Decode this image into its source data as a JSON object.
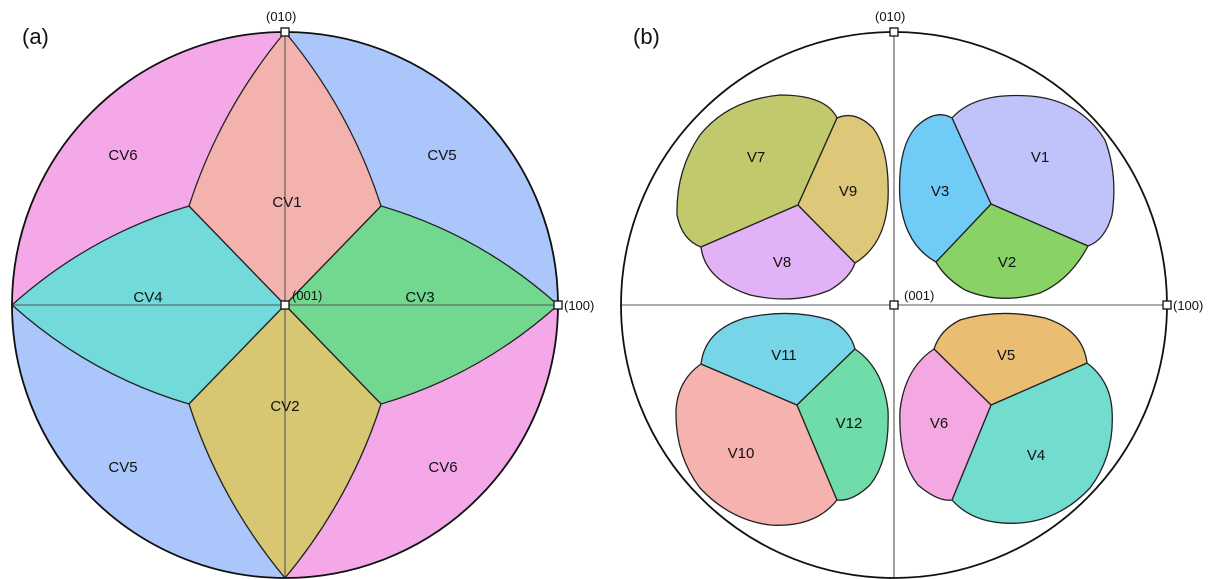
{
  "panels": [
    {
      "id": "a",
      "label": "(a)",
      "poles": {
        "top": "(010)",
        "center": "(001)",
        "right": "(100)"
      },
      "regions": [
        {
          "label": "CV1",
          "color": "#F4B2AE"
        },
        {
          "label": "CV2",
          "color": "#D8C772"
        },
        {
          "label": "CV3",
          "color": "#72D890"
        },
        {
          "label": "CV4",
          "color": "#72DADA"
        },
        {
          "label": "CV5",
          "color": "#AAC6FA"
        },
        {
          "label": "CV6",
          "color": "#F4A8E8"
        },
        {
          "label": "CV5",
          "color": "#AAC6FA"
        },
        {
          "label": "CV6",
          "color": "#F4A8E8"
        }
      ]
    },
    {
      "id": "b",
      "label": "(b)",
      "poles": {
        "top": "(010)",
        "center": "(001)",
        "right": "(100)"
      },
      "regions": [
        {
          "label": "V1",
          "color": "#C0C2FA"
        },
        {
          "label": "V2",
          "color": "#88D266"
        },
        {
          "label": "V3",
          "color": "#70CCF6"
        },
        {
          "label": "V4",
          "color": "#72DCCE"
        },
        {
          "label": "V5",
          "color": "#EABE72"
        },
        {
          "label": "V6",
          "color": "#F4A8E2"
        },
        {
          "label": "V7",
          "color": "#C2C86C"
        },
        {
          "label": "V8",
          "color": "#E2B2F6"
        },
        {
          "label": "V9",
          "color": "#DCC878"
        },
        {
          "label": "V10",
          "color": "#F6B2AE"
        },
        {
          "label": "V11",
          "color": "#76D6E8"
        },
        {
          "label": "V12",
          "color": "#70DCAA"
        }
      ]
    }
  ]
}
